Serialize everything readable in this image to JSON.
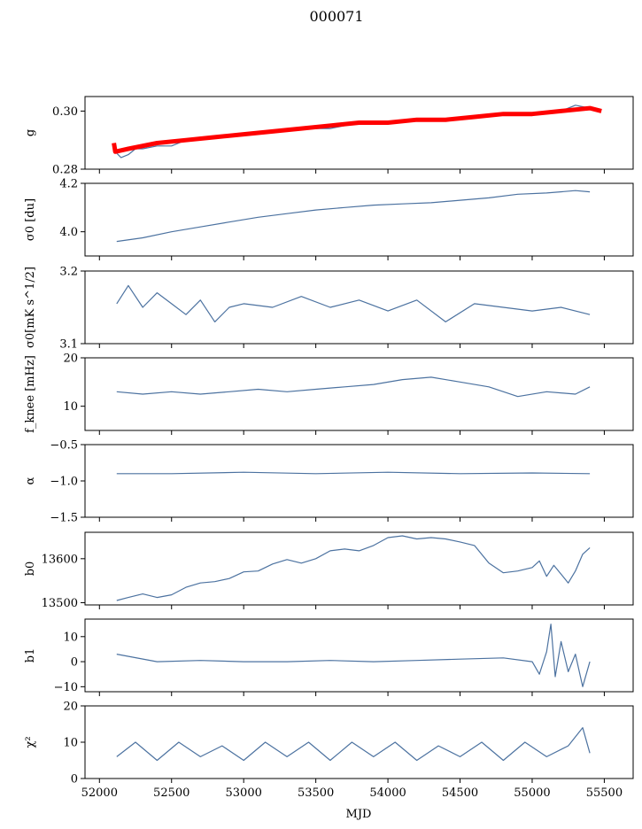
{
  "figure": {
    "title": "000071",
    "xlabel": "MJD"
  },
  "colors": {
    "series": "#4c72a0",
    "fit": "#ff0000",
    "axis": "#000000"
  },
  "chart_data": [
    {
      "type": "line",
      "ylabel": "g",
      "xlim": [
        51900,
        55700
      ],
      "ylim": [
        0.28,
        0.305
      ],
      "yticks": [
        0.28,
        0.3
      ],
      "ytick_labels": [
        "0.28",
        "0.30"
      ],
      "grid": false,
      "series": [
        {
          "x": [
            52110,
            52150,
            52200,
            52250,
            52300,
            52400,
            52500,
            52600,
            52700,
            52800,
            52900,
            53000,
            53200,
            53400,
            53600,
            53800,
            54000,
            54200,
            54400,
            54600,
            54800,
            55000,
            55100,
            55200,
            55300,
            55400
          ],
          "y": [
            0.286,
            0.284,
            0.285,
            0.287,
            0.287,
            0.288,
            0.288,
            0.29,
            0.291,
            0.291,
            0.292,
            0.292,
            0.293,
            0.294,
            0.294,
            0.296,
            0.296,
            0.297,
            0.297,
            0.298,
            0.299,
            0.299,
            0.299,
            0.3,
            0.302,
            0.301
          ]
        },
        {
          "x": [
            52100,
            52110,
            52200,
            52400,
            52600,
            52800,
            53000,
            53200,
            53400,
            53600,
            53800,
            54000,
            54200,
            54400,
            54600,
            54800,
            55000,
            55200,
            55400,
            55480
          ],
          "y": [
            0.289,
            0.286,
            0.287,
            0.289,
            0.29,
            0.291,
            0.292,
            0.293,
            0.294,
            0.295,
            0.296,
            0.296,
            0.297,
            0.297,
            0.298,
            0.299,
            0.299,
            0.3,
            0.301,
            0.3
          ]
        }
      ]
    },
    {
      "type": "line",
      "ylabel": "σ0 [du]",
      "xlim": [
        51900,
        55700
      ],
      "ylim": [
        3.9,
        4.2
      ],
      "yticks": [
        4.0,
        4.2
      ],
      "ytick_labels": [
        "4.0",
        "4.2"
      ],
      "grid": false,
      "series": [
        {
          "x": [
            52120,
            52300,
            52500,
            52700,
            52900,
            53100,
            53300,
            53500,
            53700,
            53900,
            54100,
            54300,
            54500,
            54700,
            54900,
            55100,
            55300,
            55400
          ],
          "y": [
            3.96,
            3.975,
            4.0,
            4.02,
            4.04,
            4.06,
            4.075,
            4.09,
            4.1,
            4.11,
            4.115,
            4.12,
            4.13,
            4.14,
            4.155,
            4.16,
            4.17,
            4.165
          ]
        }
      ]
    },
    {
      "type": "line",
      "ylabel": "σ0[mK s^1/2]",
      "xlim": [
        51900,
        55700
      ],
      "ylim": [
        3.1,
        3.2
      ],
      "yticks": [
        3.1,
        3.2
      ],
      "ytick_labels": [
        "3.1",
        "3.2"
      ],
      "grid": false,
      "series": [
        {
          "x": [
            52120,
            52200,
            52300,
            52400,
            52500,
            52600,
            52700,
            52800,
            52900,
            53000,
            53200,
            53400,
            53600,
            53800,
            54000,
            54200,
            54400,
            54600,
            54800,
            55000,
            55200,
            55400
          ],
          "y": [
            3.155,
            3.18,
            3.15,
            3.17,
            3.155,
            3.14,
            3.16,
            3.13,
            3.15,
            3.155,
            3.15,
            3.165,
            3.15,
            3.16,
            3.145,
            3.16,
            3.13,
            3.155,
            3.15,
            3.145,
            3.15,
            3.14
          ]
        }
      ]
    },
    {
      "type": "line",
      "ylabel": "f_knee [mHz]",
      "xlim": [
        51900,
        55700
      ],
      "ylim": [
        5,
        20
      ],
      "yticks": [
        10,
        20
      ],
      "ytick_labels": [
        "10",
        "20"
      ],
      "grid": false,
      "series": [
        {
          "x": [
            52120,
            52300,
            52500,
            52700,
            52900,
            53100,
            53300,
            53500,
            53700,
            53900,
            54100,
            54300,
            54500,
            54700,
            54900,
            55100,
            55300,
            55400
          ],
          "y": [
            13,
            12.5,
            13,
            12.5,
            13,
            13.5,
            13,
            13.5,
            14,
            14.5,
            15.5,
            16,
            15,
            14,
            12,
            13,
            12.5,
            14
          ]
        }
      ]
    },
    {
      "type": "line",
      "ylabel": "α",
      "xlim": [
        51900,
        55700
      ],
      "ylim": [
        -1.5,
        -0.5
      ],
      "yticks": [
        -1.5,
        -1.0,
        -0.5
      ],
      "ytick_labels": [
        "−1.5",
        "−1.0",
        "−0.5"
      ],
      "grid": false,
      "series": [
        {
          "x": [
            52120,
            52500,
            53000,
            53500,
            54000,
            54500,
            55000,
            55400
          ],
          "y": [
            -0.9,
            -0.9,
            -0.88,
            -0.9,
            -0.88,
            -0.9,
            -0.89,
            -0.9
          ]
        }
      ]
    },
    {
      "type": "line",
      "ylabel": "b0",
      "xlim": [
        51900,
        55700
      ],
      "ylim": [
        13495,
        13660
      ],
      "yticks": [
        13500,
        13600
      ],
      "ytick_labels": [
        "13500",
        "13600"
      ],
      "grid": false,
      "series": [
        {
          "x": [
            52120,
            52200,
            52300,
            52400,
            52500,
            52600,
            52700,
            52800,
            52900,
            53000,
            53100,
            53200,
            53300,
            53400,
            53500,
            53600,
            53700,
            53800,
            53900,
            54000,
            54100,
            54200,
            54300,
            54400,
            54500,
            54600,
            54700,
            54800,
            54900,
            55000,
            55050,
            55100,
            55150,
            55200,
            55250,
            55300,
            55350,
            55400
          ],
          "y": [
            13505,
            13512,
            13520,
            13512,
            13518,
            13535,
            13545,
            13548,
            13555,
            13570,
            13572,
            13588,
            13598,
            13590,
            13600,
            13618,
            13622,
            13618,
            13630,
            13648,
            13652,
            13645,
            13648,
            13645,
            13638,
            13630,
            13590,
            13568,
            13572,
            13580,
            13595,
            13560,
            13585,
            13565,
            13545,
            13572,
            13610,
            13625
          ]
        }
      ]
    },
    {
      "type": "line",
      "ylabel": "b1",
      "xlim": [
        51900,
        55700
      ],
      "ylim": [
        -12,
        17
      ],
      "yticks": [
        -10,
        0,
        10
      ],
      "ytick_labels": [
        "−10",
        "0",
        "10"
      ],
      "grid": false,
      "series": [
        {
          "x": [
            52120,
            52400,
            52700,
            53000,
            53300,
            53600,
            53900,
            54200,
            54500,
            54800,
            55000,
            55050,
            55100,
            55130,
            55160,
            55200,
            55250,
            55300,
            55350,
            55400
          ],
          "y": [
            3,
            0,
            0.5,
            0,
            0,
            0.5,
            0,
            0.5,
            1,
            1.5,
            0,
            -5,
            4,
            15,
            -6,
            8,
            -4,
            3,
            -10,
            0
          ]
        }
      ]
    },
    {
      "type": "line",
      "ylabel": "χ²",
      "xlim": [
        51900,
        55700
      ],
      "ylim": [
        0,
        20
      ],
      "yticks": [
        0,
        10,
        20
      ],
      "ytick_labels": [
        "0",
        "10",
        "20"
      ],
      "grid": false,
      "series": [
        {
          "x": [
            52120,
            52250,
            52400,
            52550,
            52700,
            52850,
            53000,
            53150,
            53300,
            53450,
            53600,
            53750,
            53900,
            54050,
            54200,
            54350,
            54500,
            54650,
            54800,
            54950,
            55100,
            55250,
            55350,
            55400
          ],
          "y": [
            6,
            10,
            5,
            10,
            6,
            9,
            5,
            10,
            6,
            10,
            5,
            10,
            6,
            10,
            5,
            9,
            6,
            10,
            5,
            10,
            6,
            9,
            14,
            7
          ]
        }
      ]
    }
  ],
  "xaxis": {
    "ticks": [
      52000,
      52500,
      53000,
      53500,
      54000,
      54500,
      55000,
      55500
    ],
    "tick_labels": [
      "52000",
      "52500",
      "53000",
      "53500",
      "54000",
      "54500",
      "55000",
      "55500"
    ]
  }
}
